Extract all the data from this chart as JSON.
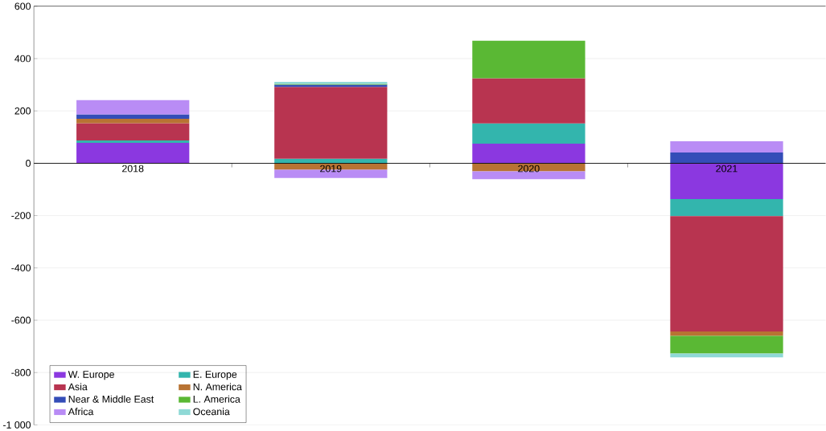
{
  "chart_data": {
    "type": "bar",
    "stacked": true,
    "categories": [
      "2018",
      "2019",
      "2020",
      "2021"
    ],
    "series": [
      {
        "name": "W. Europe",
        "color": "#8b38e0",
        "values": [
          78,
          0,
          75,
          -137
        ]
      },
      {
        "name": "E. Europe",
        "color": "#33b5ad",
        "values": [
          9,
          17,
          77,
          -65
        ]
      },
      {
        "name": "Asia",
        "color": "#b83450",
        "values": [
          66,
          275,
          173,
          -441
        ]
      },
      {
        "name": "N. America",
        "color": "#b87333",
        "values": [
          17,
          -25,
          -31,
          -17
        ]
      },
      {
        "name": "Near & Middle East",
        "color": "#344db8",
        "values": [
          17,
          8,
          0,
          41
        ]
      },
      {
        "name": "L. America",
        "color": "#5ab834",
        "values": [
          0,
          3,
          143,
          -67
        ]
      },
      {
        "name": "Africa",
        "color": "#b98cf5",
        "values": [
          54,
          -31,
          -30,
          43
        ]
      },
      {
        "name": "Oceania",
        "color": "#8fd9d6",
        "values": [
          0,
          8,
          0,
          -15
        ]
      }
    ],
    "ylim": [
      -1000,
      600
    ],
    "yticks": [
      {
        "value": -1000,
        "label": "-1 000"
      },
      -800,
      -600,
      -400,
      -200,
      0,
      200,
      400,
      600
    ],
    "grid": "y",
    "legend": "bottom left"
  }
}
